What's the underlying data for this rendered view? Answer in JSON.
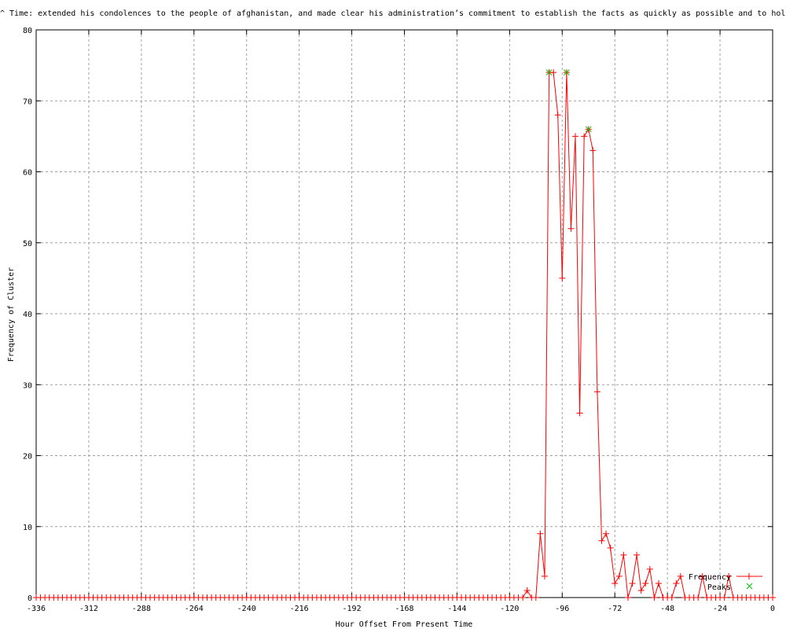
{
  "chart_data": {
    "type": "line",
    "title": "^ Time: extended his condolences to the people of afghanistan, and made clear his administration’s commitment to establish the facts as quickly as possible and to hold",
    "xlabel": "Hour Offset From Present Time",
    "ylabel": "Frequency of Cluster",
    "xlim": [
      -336,
      0
    ],
    "ylim": [
      0,
      80
    ],
    "xticks": [
      "-336",
      "-312",
      "-288",
      "-264",
      "-240",
      "-216",
      "-192",
      "-168",
      "-144",
      "-120",
      "-96",
      "-72",
      "-48",
      "-24",
      "0"
    ],
    "yticks": [
      "0",
      "10",
      "20",
      "30",
      "40",
      "50",
      "60",
      "70",
      "80"
    ],
    "grid": true,
    "legend_position": "bottom-right",
    "series": [
      {
        "name": "Frequency",
        "color": "#ff0000",
        "marker": "plus",
        "x": [
          -336,
          -334,
          -332,
          -330,
          -328,
          -326,
          -324,
          -322,
          -320,
          -318,
          -316,
          -314,
          -312,
          -310,
          -308,
          -306,
          -304,
          -302,
          -300,
          -298,
          -296,
          -294,
          -292,
          -290,
          -288,
          -286,
          -284,
          -282,
          -280,
          -278,
          -276,
          -274,
          -272,
          -270,
          -268,
          -266,
          -264,
          -262,
          -260,
          -258,
          -256,
          -254,
          -252,
          -250,
          -248,
          -246,
          -244,
          -242,
          -240,
          -238,
          -236,
          -234,
          -232,
          -230,
          -228,
          -226,
          -224,
          -222,
          -220,
          -218,
          -216,
          -214,
          -212,
          -210,
          -208,
          -206,
          -204,
          -202,
          -200,
          -198,
          -196,
          -194,
          -192,
          -190,
          -188,
          -186,
          -184,
          -182,
          -180,
          -178,
          -176,
          -174,
          -172,
          -170,
          -168,
          -166,
          -164,
          -162,
          -160,
          -158,
          -156,
          -154,
          -152,
          -150,
          -148,
          -146,
          -144,
          -142,
          -140,
          -138,
          -136,
          -134,
          -132,
          -130,
          -128,
          -126,
          -124,
          -122,
          -120,
          -118,
          -116,
          -114,
          -112,
          -110,
          -108,
          -106,
          -104,
          -102,
          -100,
          -98,
          -96,
          -94,
          -92,
          -90,
          -88,
          -86,
          -84,
          -82,
          -80,
          -78,
          -76,
          -74,
          -72,
          -70,
          -68,
          -66,
          -64,
          -62,
          -60,
          -58,
          -56,
          -54,
          -52,
          -50,
          -48,
          -46,
          -44,
          -42,
          -40,
          -38,
          -36,
          -34,
          -32,
          -30,
          -28,
          -26,
          -24,
          -22,
          -20,
          -18,
          -16,
          -14,
          -12,
          -10,
          -8,
          -6,
          -4,
          -2,
          0
        ],
        "y": [
          0,
          0,
          0,
          0,
          0,
          0,
          0,
          0,
          0,
          0,
          0,
          0,
          0,
          0,
          0,
          0,
          0,
          0,
          0,
          0,
          0,
          0,
          0,
          0,
          0,
          0,
          0,
          0,
          0,
          0,
          0,
          0,
          0,
          0,
          0,
          0,
          0,
          0,
          0,
          0,
          0,
          0,
          0,
          0,
          0,
          0,
          0,
          0,
          0,
          0,
          0,
          0,
          0,
          0,
          0,
          0,
          0,
          0,
          0,
          0,
          0,
          0,
          0,
          0,
          0,
          0,
          0,
          0,
          0,
          0,
          0,
          0,
          0,
          0,
          0,
          0,
          0,
          0,
          0,
          0,
          0,
          0,
          0,
          0,
          0,
          0,
          0,
          0,
          0,
          0,
          0,
          0,
          0,
          0,
          0,
          0,
          0,
          0,
          0,
          0,
          0,
          0,
          0,
          0,
          0,
          0,
          0,
          0,
          0,
          0,
          0,
          0,
          1,
          0,
          0,
          9,
          3,
          74,
          74,
          68,
          45,
          74,
          52,
          65,
          26,
          65,
          66,
          63,
          29,
          8,
          9,
          7,
          2,
          3,
          6,
          0,
          2,
          6,
          1,
          2,
          4,
          0,
          2,
          0,
          0,
          0,
          2,
          3,
          0,
          0,
          0,
          0,
          3,
          0,
          0,
          0,
          0,
          0,
          3,
          0,
          0,
          0,
          0,
          0,
          0,
          0,
          0,
          0,
          0
        ]
      },
      {
        "name": "Peaks",
        "color": "#00c000",
        "marker": "cross",
        "x": [
          -102,
          -94,
          -84
        ],
        "y": [
          74,
          74,
          66
        ]
      }
    ]
  }
}
